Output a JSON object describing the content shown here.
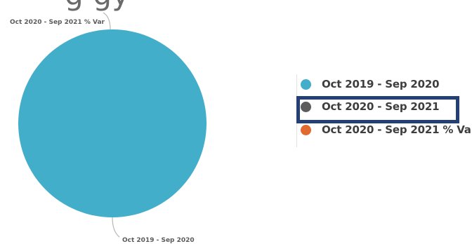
{
  "header": {
    "cropped_text": "g                 gy"
  },
  "colors": {
    "series_1": "#42aec9",
    "series_2": "#5c5c5c",
    "series_3": "#e06a30",
    "highlight": "#233f73",
    "leader": "#b7b7b7"
  },
  "chart_data": {
    "type": "pie",
    "series": [
      {
        "name": "Oct 2019 - Sep 2020",
        "value": 100,
        "color": "#42aec9"
      },
      {
        "name": "Oct 2020 - Sep 2021",
        "value": 0,
        "color": "#5c5c5c"
      },
      {
        "name": "Oct 2020 - Sep 2021 % Var",
        "value": 0,
        "color": "#e06a30"
      }
    ],
    "labels": [
      "Oct 2020 - Sep 2021 % Var",
      "Oct 2019 - Sep 2020"
    ],
    "legend_position": "right",
    "highlighted_legend_item": "Oct 2020 - Sep 2021"
  }
}
